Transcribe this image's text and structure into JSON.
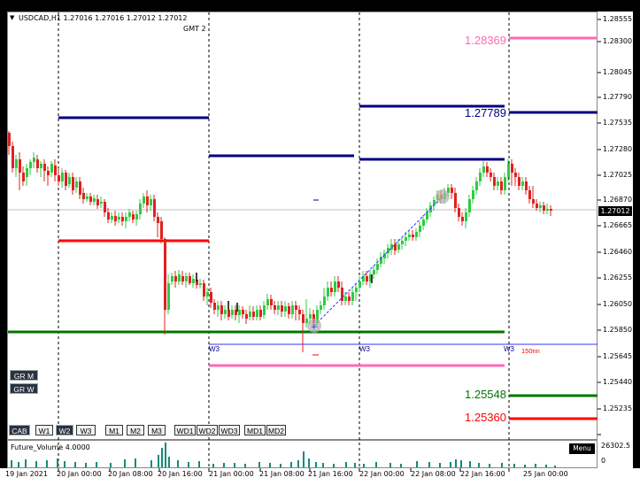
{
  "header": {
    "symbol_icon": "dropdown-triangle-icon",
    "quote": "USDCAD,H1  1.27016 1.27016 1.27012 1.27012",
    "timezone": "GMT 2"
  },
  "price_axis": {
    "ticks": [
      "1.28555",
      "1.28300",
      "1.28045",
      "1.27790",
      "1.27535",
      "1.27280",
      "1.27025",
      "1.26870",
      "1.26665",
      "1.26460",
      "1.26255",
      "1.26050",
      "1.25850",
      "1.25645",
      "1.25440",
      "1.25235"
    ],
    "current_price": "1.27012"
  },
  "levels": [
    {
      "label": "1.28369",
      "color": "#ff69b4"
    },
    {
      "label": "1.27789",
      "color": "#000080"
    },
    {
      "label": "1.25548",
      "color": "#007700"
    },
    {
      "label": "1.25360",
      "color": "#ff0000"
    }
  ],
  "week_labels": [
    "W3",
    "W3",
    "W3"
  ],
  "w3_note": "150nn",
  "period_buttons": [
    {
      "label": "GR M",
      "style": "dark"
    },
    {
      "label": "GR W",
      "style": "dark"
    }
  ],
  "toolbar_buttons": [
    "CAB",
    "W1",
    "W2",
    "W3",
    "M1",
    "M2",
    "M3",
    "WD1",
    "WD2",
    "WD3",
    "MD1",
    "MD2"
  ],
  "indicator": {
    "name": "Future_Volume 4.0000",
    "axis_max": "26302.5",
    "axis_min": "0",
    "menu_label": "Menu"
  },
  "time_axis": [
    "19 Jan 2021",
    "20 Jan 00:00",
    "20 Jan 08:00",
    "20 Jan 16:00",
    "21 Jan 00:00",
    "21 Jan 08:00",
    "21 Jan 16:00",
    "22 Jan 00:00",
    "22 Jan 08:00",
    "22 Jan 16:00",
    "25 Jan 00:00"
  ],
  "colors": {
    "bull_candle": "#2ecc40",
    "bear_candle": "#e02020",
    "volume_bar": "#138a7a"
  }
}
